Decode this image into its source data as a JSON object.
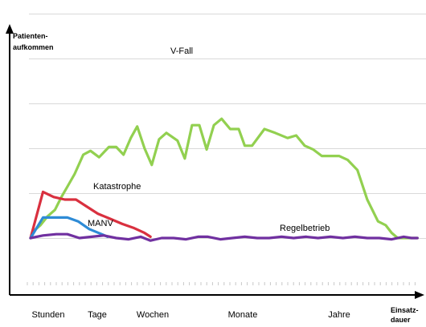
{
  "chart_data": {
    "type": "line",
    "ylabel": "Patienten-\naufkommen",
    "xlabel": "Einsatz-\ndauer",
    "categories": [
      "Stunden",
      "Tage",
      "Wochen",
      "Monate",
      "Jahre"
    ],
    "grid": true,
    "ylim": [
      0,
      100
    ],
    "colors": {
      "V-Fall": "#92d050",
      "Katastrophe": "#d9303f",
      "MANV": "#2e8bd6",
      "Regelbetrieb": "#7030a0"
    },
    "series": [
      {
        "name": "V-Fall",
        "x": [
          0,
          0.09,
          0.23,
          0.4,
          0.57,
          0.72,
          0.86,
          1.03,
          1.23,
          1.4,
          1.6,
          1.83,
          2.0,
          2.17,
          2.34,
          2.49,
          2.66,
          2.83,
          3.0,
          3.17,
          3.43,
          3.6,
          3.77,
          3.94,
          4.11,
          4.28,
          4.46,
          4.66,
          4.86,
          5.0,
          5.17,
          5.46,
          5.71,
          6.0,
          6.2,
          6.4,
          6.6,
          6.8,
          7.0,
          7.2,
          7.4,
          7.63,
          7.86,
          8.11,
          8.29,
          8.43,
          8.57,
          8.71,
          8.89,
          9.03
        ],
        "values": [
          0,
          6,
          10,
          17,
          22,
          32,
          40,
          50,
          65,
          68,
          63,
          71,
          71,
          65,
          78,
          87,
          70,
          57,
          77,
          82,
          76,
          62,
          88,
          88,
          69,
          88,
          93,
          85,
          85,
          72,
          72,
          85,
          82,
          78,
          80,
          72,
          69,
          64,
          64,
          64,
          61,
          53,
          30,
          13,
          10,
          4,
          0,
          0,
          0,
          0
        ]
      },
      {
        "name": "Katastrophe",
        "x": [
          0,
          0.29,
          0.54,
          0.8,
          1.06,
          1.29,
          1.57,
          1.86,
          2.14,
          2.4,
          2.66,
          2.8
        ],
        "values": [
          0,
          36,
          32,
          30,
          30,
          25,
          19,
          15,
          11,
          8,
          4,
          1
        ]
      },
      {
        "name": "MANV",
        "x": [
          0,
          0.29,
          0.57,
          0.86,
          1.11,
          1.37,
          1.66,
          1.8
        ],
        "values": [
          0,
          16,
          16,
          16,
          13,
          7,
          3,
          1
        ]
      },
      {
        "name": "Regelbetrieb",
        "x": [
          0,
          0.29,
          0.6,
          0.86,
          1.14,
          1.43,
          1.71,
          2.0,
          2.29,
          2.57,
          2.8,
          3.06,
          3.34,
          3.63,
          3.91,
          4.14,
          4.43,
          4.71,
          5.0,
          5.29,
          5.57,
          5.86,
          6.14,
          6.43,
          6.71,
          7.0,
          7.29,
          7.57,
          7.86,
          8.14,
          8.43,
          8.71,
          8.89,
          9.03
        ],
        "values": [
          0,
          2,
          3,
          3,
          0,
          1,
          2,
          0,
          -1,
          1,
          -2,
          0,
          0,
          -1,
          1,
          1,
          -1,
          0,
          1,
          0,
          0,
          1,
          0,
          1,
          0,
          1,
          0,
          1,
          0,
          0,
          -1,
          1,
          0,
          0
        ]
      }
    ]
  }
}
